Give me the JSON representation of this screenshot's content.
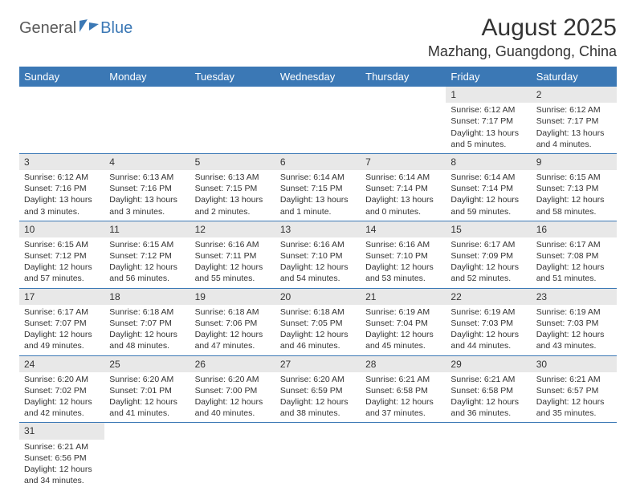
{
  "logo": {
    "part1": "General",
    "part2": "Blue"
  },
  "title": "August 2025",
  "location": "Mazhang, Guangdong, China",
  "colors": {
    "header_bg": "#3b78b5",
    "header_text": "#ffffff",
    "daynum_bg": "#e8e8e8",
    "row_border": "#3b78b5",
    "text": "#333333",
    "logo_gray": "#5a5a5a",
    "logo_blue": "#3b78b5"
  },
  "weekdays": [
    "Sunday",
    "Monday",
    "Tuesday",
    "Wednesday",
    "Thursday",
    "Friday",
    "Saturday"
  ],
  "weeks": [
    [
      null,
      null,
      null,
      null,
      null,
      {
        "n": "1",
        "sr": "Sunrise: 6:12 AM",
        "ss": "Sunset: 7:17 PM",
        "dl": "Daylight: 13 hours and 5 minutes."
      },
      {
        "n": "2",
        "sr": "Sunrise: 6:12 AM",
        "ss": "Sunset: 7:17 PM",
        "dl": "Daylight: 13 hours and 4 minutes."
      }
    ],
    [
      {
        "n": "3",
        "sr": "Sunrise: 6:12 AM",
        "ss": "Sunset: 7:16 PM",
        "dl": "Daylight: 13 hours and 3 minutes."
      },
      {
        "n": "4",
        "sr": "Sunrise: 6:13 AM",
        "ss": "Sunset: 7:16 PM",
        "dl": "Daylight: 13 hours and 3 minutes."
      },
      {
        "n": "5",
        "sr": "Sunrise: 6:13 AM",
        "ss": "Sunset: 7:15 PM",
        "dl": "Daylight: 13 hours and 2 minutes."
      },
      {
        "n": "6",
        "sr": "Sunrise: 6:14 AM",
        "ss": "Sunset: 7:15 PM",
        "dl": "Daylight: 13 hours and 1 minute."
      },
      {
        "n": "7",
        "sr": "Sunrise: 6:14 AM",
        "ss": "Sunset: 7:14 PM",
        "dl": "Daylight: 13 hours and 0 minutes."
      },
      {
        "n": "8",
        "sr": "Sunrise: 6:14 AM",
        "ss": "Sunset: 7:14 PM",
        "dl": "Daylight: 12 hours and 59 minutes."
      },
      {
        "n": "9",
        "sr": "Sunrise: 6:15 AM",
        "ss": "Sunset: 7:13 PM",
        "dl": "Daylight: 12 hours and 58 minutes."
      }
    ],
    [
      {
        "n": "10",
        "sr": "Sunrise: 6:15 AM",
        "ss": "Sunset: 7:12 PM",
        "dl": "Daylight: 12 hours and 57 minutes."
      },
      {
        "n": "11",
        "sr": "Sunrise: 6:15 AM",
        "ss": "Sunset: 7:12 PM",
        "dl": "Daylight: 12 hours and 56 minutes."
      },
      {
        "n": "12",
        "sr": "Sunrise: 6:16 AM",
        "ss": "Sunset: 7:11 PM",
        "dl": "Daylight: 12 hours and 55 minutes."
      },
      {
        "n": "13",
        "sr": "Sunrise: 6:16 AM",
        "ss": "Sunset: 7:10 PM",
        "dl": "Daylight: 12 hours and 54 minutes."
      },
      {
        "n": "14",
        "sr": "Sunrise: 6:16 AM",
        "ss": "Sunset: 7:10 PM",
        "dl": "Daylight: 12 hours and 53 minutes."
      },
      {
        "n": "15",
        "sr": "Sunrise: 6:17 AM",
        "ss": "Sunset: 7:09 PM",
        "dl": "Daylight: 12 hours and 52 minutes."
      },
      {
        "n": "16",
        "sr": "Sunrise: 6:17 AM",
        "ss": "Sunset: 7:08 PM",
        "dl": "Daylight: 12 hours and 51 minutes."
      }
    ],
    [
      {
        "n": "17",
        "sr": "Sunrise: 6:17 AM",
        "ss": "Sunset: 7:07 PM",
        "dl": "Daylight: 12 hours and 49 minutes."
      },
      {
        "n": "18",
        "sr": "Sunrise: 6:18 AM",
        "ss": "Sunset: 7:07 PM",
        "dl": "Daylight: 12 hours and 48 minutes."
      },
      {
        "n": "19",
        "sr": "Sunrise: 6:18 AM",
        "ss": "Sunset: 7:06 PM",
        "dl": "Daylight: 12 hours and 47 minutes."
      },
      {
        "n": "20",
        "sr": "Sunrise: 6:18 AM",
        "ss": "Sunset: 7:05 PM",
        "dl": "Daylight: 12 hours and 46 minutes."
      },
      {
        "n": "21",
        "sr": "Sunrise: 6:19 AM",
        "ss": "Sunset: 7:04 PM",
        "dl": "Daylight: 12 hours and 45 minutes."
      },
      {
        "n": "22",
        "sr": "Sunrise: 6:19 AM",
        "ss": "Sunset: 7:03 PM",
        "dl": "Daylight: 12 hours and 44 minutes."
      },
      {
        "n": "23",
        "sr": "Sunrise: 6:19 AM",
        "ss": "Sunset: 7:03 PM",
        "dl": "Daylight: 12 hours and 43 minutes."
      }
    ],
    [
      {
        "n": "24",
        "sr": "Sunrise: 6:20 AM",
        "ss": "Sunset: 7:02 PM",
        "dl": "Daylight: 12 hours and 42 minutes."
      },
      {
        "n": "25",
        "sr": "Sunrise: 6:20 AM",
        "ss": "Sunset: 7:01 PM",
        "dl": "Daylight: 12 hours and 41 minutes."
      },
      {
        "n": "26",
        "sr": "Sunrise: 6:20 AM",
        "ss": "Sunset: 7:00 PM",
        "dl": "Daylight: 12 hours and 40 minutes."
      },
      {
        "n": "27",
        "sr": "Sunrise: 6:20 AM",
        "ss": "Sunset: 6:59 PM",
        "dl": "Daylight: 12 hours and 38 minutes."
      },
      {
        "n": "28",
        "sr": "Sunrise: 6:21 AM",
        "ss": "Sunset: 6:58 PM",
        "dl": "Daylight: 12 hours and 37 minutes."
      },
      {
        "n": "29",
        "sr": "Sunrise: 6:21 AM",
        "ss": "Sunset: 6:58 PM",
        "dl": "Daylight: 12 hours and 36 minutes."
      },
      {
        "n": "30",
        "sr": "Sunrise: 6:21 AM",
        "ss": "Sunset: 6:57 PM",
        "dl": "Daylight: 12 hours and 35 minutes."
      }
    ],
    [
      {
        "n": "31",
        "sr": "Sunrise: 6:21 AM",
        "ss": "Sunset: 6:56 PM",
        "dl": "Daylight: 12 hours and 34 minutes."
      },
      null,
      null,
      null,
      null,
      null,
      null
    ]
  ]
}
